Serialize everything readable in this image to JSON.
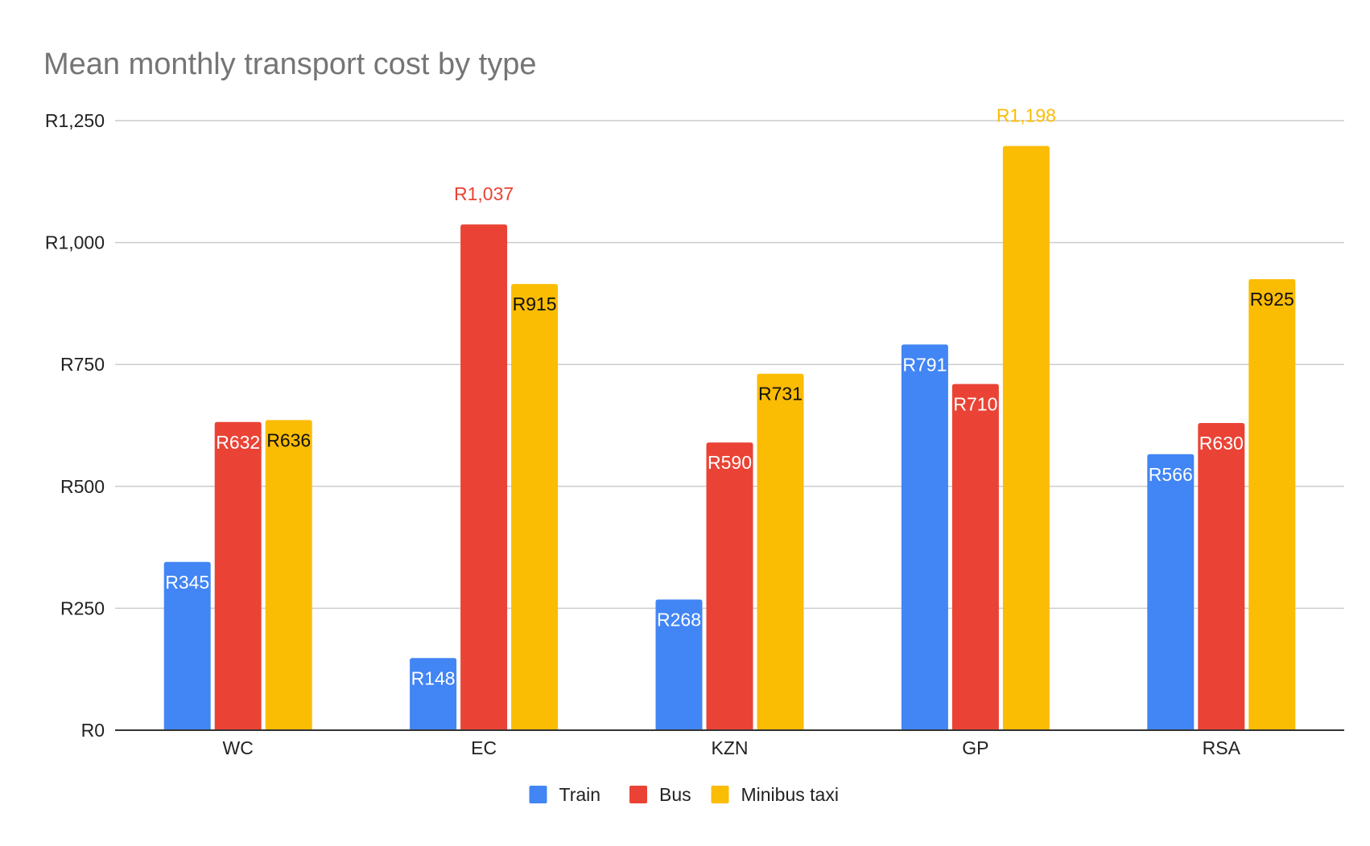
{
  "chart_data": {
    "type": "bar",
    "title": "Mean monthly transport cost by type",
    "xlabel": "",
    "ylabel": "",
    "ylim": [
      0,
      1250
    ],
    "yticks": [
      0,
      250,
      500,
      750,
      1000,
      1250
    ],
    "ytick_labels": [
      "R0",
      "R250",
      "R500",
      "R750",
      "R1,000",
      "R1,250"
    ],
    "grid": true,
    "legend_position": "bottom",
    "categories": [
      "WC",
      "EC",
      "KZN",
      "GP",
      "RSA"
    ],
    "series": [
      {
        "name": "Train",
        "color": "#4285F4",
        "values": [
          345,
          148,
          268,
          791,
          566
        ],
        "labels": [
          "R345",
          "R148",
          "R268",
          "R791",
          "R566"
        ]
      },
      {
        "name": "Bus",
        "color": "#EA4335",
        "values": [
          632,
          1037,
          590,
          710,
          630
        ],
        "labels": [
          "R632",
          "R1,037",
          "R590",
          "R710",
          "R630"
        ]
      },
      {
        "name": "Minibus taxi",
        "color": "#FBBC04",
        "values": [
          636,
          915,
          731,
          1198,
          925
        ],
        "labels": [
          "R636",
          "R915",
          "R731",
          "R1,198",
          "R925"
        ]
      }
    ]
  }
}
